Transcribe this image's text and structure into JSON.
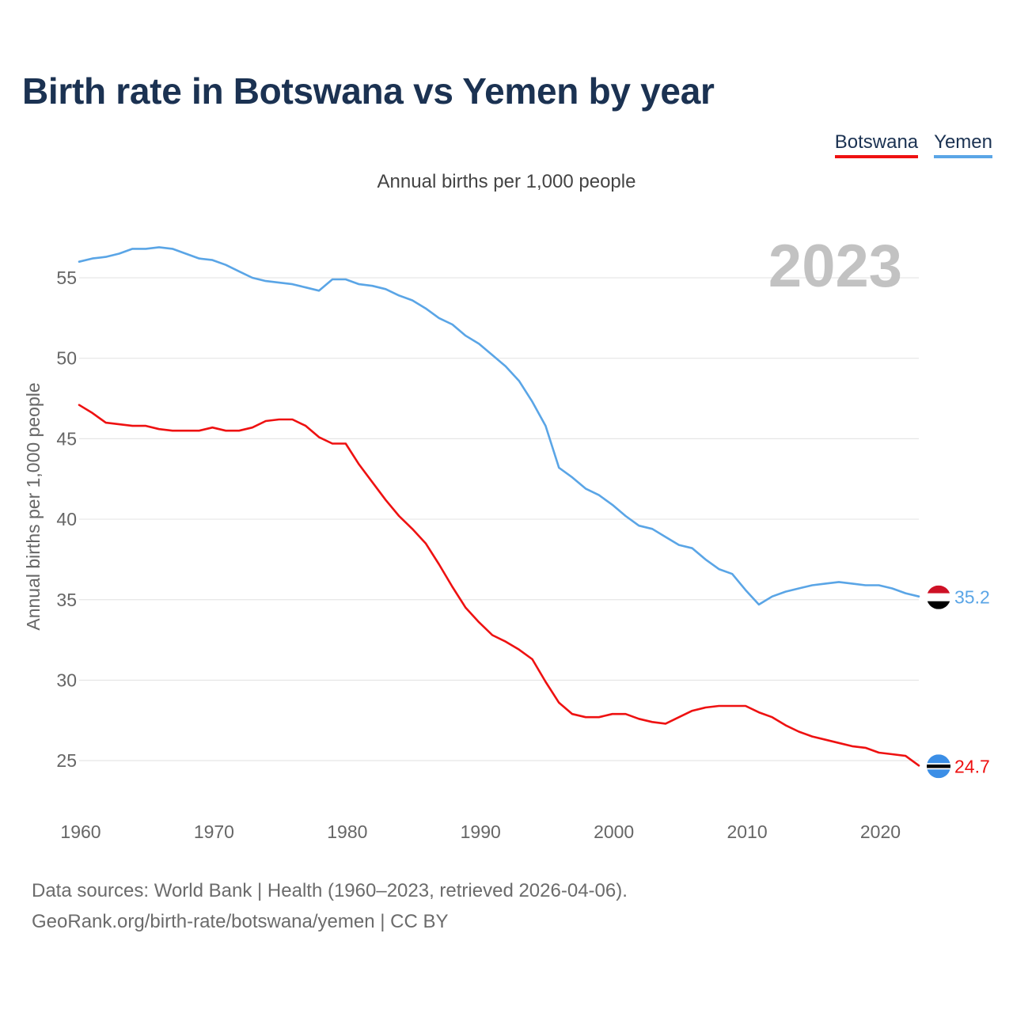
{
  "title": "Birth rate in Botswana vs Yemen by year",
  "subtitle": "Annual births per 1,000 people",
  "legend": [
    {
      "name": "Botswana",
      "color": "#ee1111"
    },
    {
      "name": "Yemen",
      "color": "#5aa5e6"
    }
  ],
  "year_watermark": "2023",
  "source": {
    "line1": "Data sources: World Bank | Health (1960–2023, retrieved 2026-04-06).",
    "line2": "GeoRank.org/birth-rate/botswana/yemen | CC BY"
  },
  "chart_data": {
    "type": "line",
    "title": "Birth rate in Botswana vs Yemen by year",
    "xlabel": "",
    "ylabel": "Annual births per 1,000 people",
    "xlim": [
      1960,
      2023
    ],
    "ylim": [
      22.5,
      58
    ],
    "x_ticks": [
      1960,
      1970,
      1980,
      1990,
      2000,
      2010,
      2020
    ],
    "y_ticks": [
      25,
      30,
      35,
      40,
      45,
      50,
      55
    ],
    "grid": true,
    "x": [
      1960,
      1961,
      1962,
      1963,
      1964,
      1965,
      1966,
      1967,
      1968,
      1969,
      1970,
      1971,
      1972,
      1973,
      1974,
      1975,
      1976,
      1977,
      1978,
      1979,
      1980,
      1981,
      1982,
      1983,
      1984,
      1985,
      1986,
      1987,
      1988,
      1989,
      1990,
      1991,
      1992,
      1993,
      1994,
      1995,
      1996,
      1997,
      1998,
      1999,
      2000,
      2001,
      2002,
      2003,
      2004,
      2005,
      2006,
      2007,
      2008,
      2009,
      2010,
      2011,
      2012,
      2013,
      2014,
      2015,
      2016,
      2017,
      2018,
      2019,
      2020,
      2021,
      2022,
      2023
    ],
    "series": [
      {
        "name": "Botswana",
        "color": "#ee1111",
        "end_label": "24.7",
        "values": [
          47.1,
          46.6,
          46.0,
          45.9,
          45.8,
          45.8,
          45.6,
          45.5,
          45.5,
          45.5,
          45.7,
          45.5,
          45.5,
          45.7,
          46.1,
          46.2,
          46.2,
          45.8,
          45.1,
          44.7,
          44.7,
          43.4,
          42.3,
          41.2,
          40.2,
          39.4,
          38.5,
          37.2,
          35.8,
          34.5,
          33.6,
          32.8,
          32.4,
          31.9,
          31.3,
          29.9,
          28.6,
          27.9,
          27.7,
          27.7,
          27.9,
          27.9,
          27.6,
          27.4,
          27.3,
          27.7,
          28.1,
          28.3,
          28.4,
          28.4,
          28.4,
          28.0,
          27.7,
          27.2,
          26.8,
          26.5,
          26.3,
          26.1,
          25.9,
          25.8,
          25.5,
          25.4,
          25.3,
          24.7
        ]
      },
      {
        "name": "Yemen",
        "color": "#5aa5e6",
        "end_label": "35.2",
        "values": [
          56.0,
          56.2,
          56.3,
          56.5,
          56.8,
          56.8,
          56.9,
          56.8,
          56.5,
          56.2,
          56.1,
          55.8,
          55.4,
          55.0,
          54.8,
          54.7,
          54.6,
          54.4,
          54.2,
          54.9,
          54.9,
          54.6,
          54.5,
          54.3,
          53.9,
          53.6,
          53.1,
          52.5,
          52.1,
          51.4,
          50.9,
          50.2,
          49.5,
          48.6,
          47.3,
          45.8,
          43.2,
          42.6,
          41.9,
          41.5,
          40.9,
          40.2,
          39.6,
          39.4,
          38.9,
          38.4,
          38.2,
          37.5,
          36.9,
          36.6,
          35.6,
          34.7,
          35.2,
          35.5,
          35.7,
          35.9,
          36.0,
          36.1,
          36.0,
          35.9,
          35.9,
          35.7,
          35.4,
          35.2
        ]
      }
    ]
  }
}
